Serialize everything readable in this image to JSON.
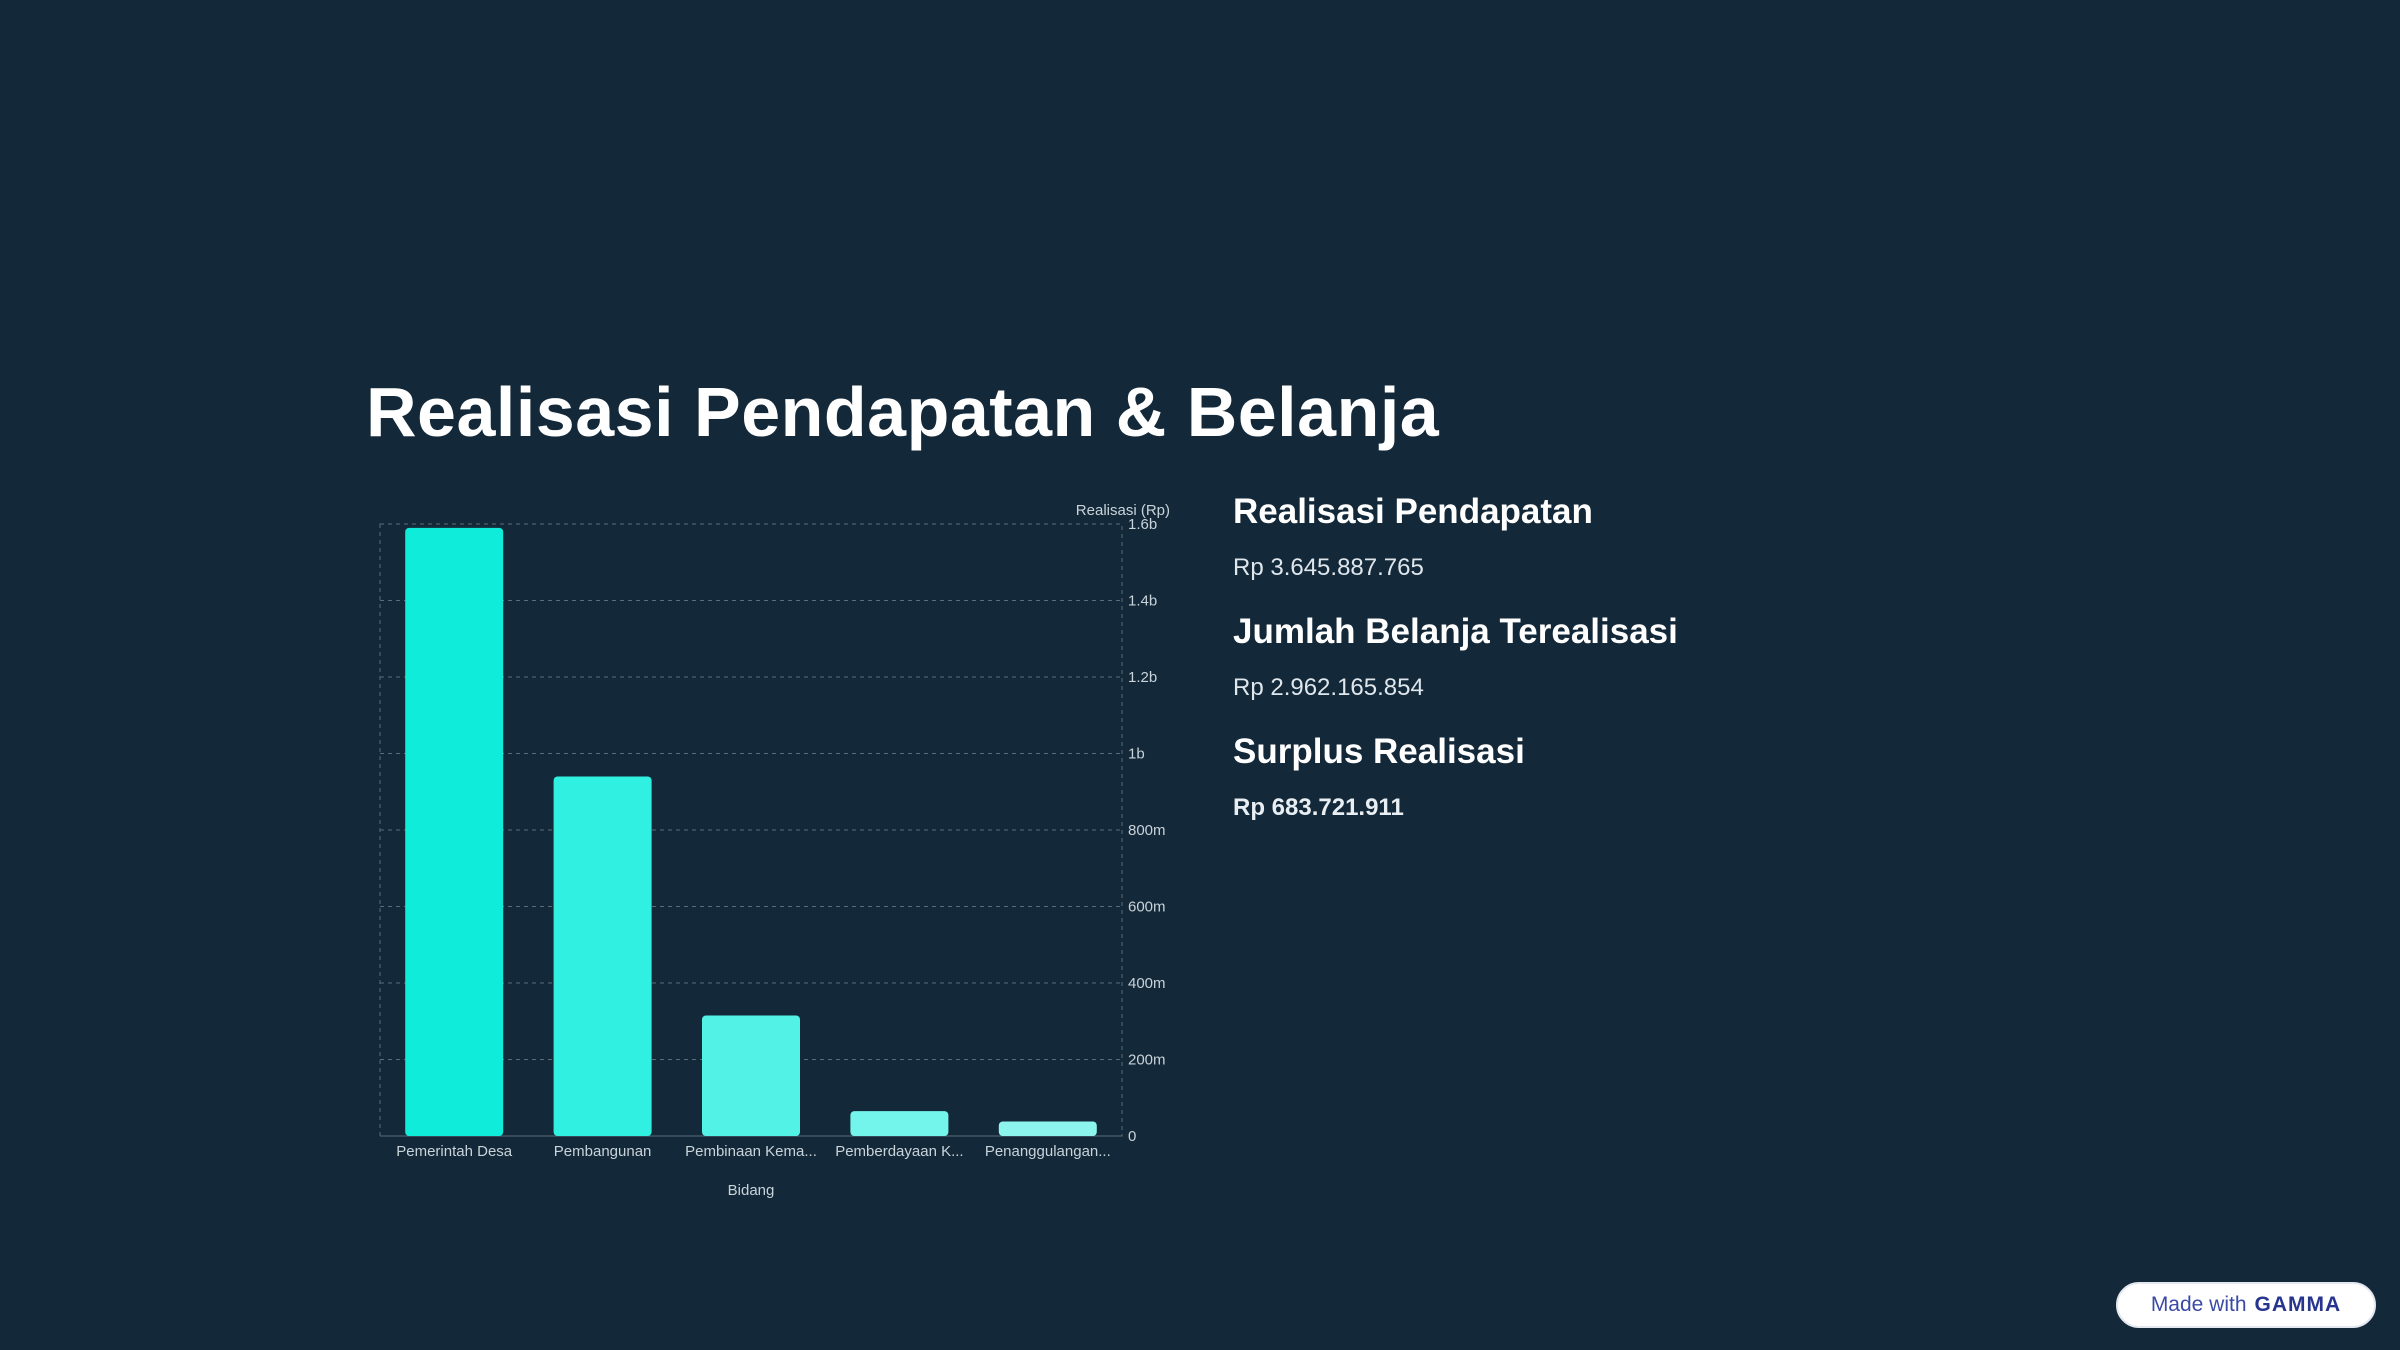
{
  "title": "Realisasi Pendapatan & Belanja",
  "stats": [
    {
      "label": "Realisasi Pendapatan",
      "value": "Rp 3.645.887.765"
    },
    {
      "label": "Jumlah Belanja Terealisasi",
      "value": "Rp 2.962.165.854"
    },
    {
      "label": "Surplus Realisasi",
      "value": "Rp 683.721.911"
    }
  ],
  "badge": {
    "prefix": "Made with",
    "brand": "GAMMA"
  },
  "colors": {
    "background": "#132838",
    "bars": [
      "#10ECDA",
      "#30F1E1",
      "#52F3E6",
      "#74F5EB",
      "#8CF6EE"
    ],
    "grid": "#5b6b78",
    "tick": "#c9d3da"
  },
  "chart_data": {
    "type": "bar",
    "categories": [
      "Pemerintah Desa",
      "Pembangunan",
      "Pembinaan Kema...",
      "Pemberdayaan K...",
      "Penanggulangan..."
    ],
    "values": [
      1590000000,
      940000000,
      315000000,
      65000000,
      38000000
    ],
    "xlabel": "Bidang",
    "ylabel": "Realisasi (Rp)",
    "ylim": [
      0,
      1600000000
    ],
    "yticks": [
      {
        "value": 0,
        "label": "0"
      },
      {
        "value": 200000000,
        "label": "200m"
      },
      {
        "value": 400000000,
        "label": "400m"
      },
      {
        "value": 600000000,
        "label": "600m"
      },
      {
        "value": 800000000,
        "label": "800m"
      },
      {
        "value": 1000000000,
        "label": "1b"
      },
      {
        "value": 1200000000,
        "label": "1.2b"
      },
      {
        "value": 1400000000,
        "label": "1.4b"
      },
      {
        "value": 1600000000,
        "label": "1.6b"
      }
    ],
    "yaxis_side": "right",
    "grid": true
  }
}
